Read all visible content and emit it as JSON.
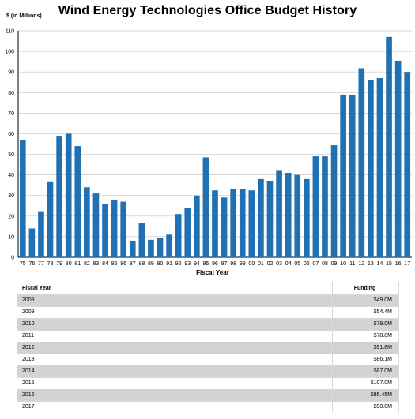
{
  "chart_data": {
    "type": "bar",
    "title": "Wind Energy Technologies Office Budget History",
    "ylabel": "$ (in Millions)",
    "xlabel": "Fiscal Year",
    "ylim": [
      0,
      110
    ],
    "yticks": [
      0,
      10,
      20,
      30,
      40,
      50,
      60,
      70,
      80,
      90,
      100,
      110
    ],
    "grid": "horizontal",
    "bar_color": "#2070b4",
    "categories": [
      "75",
      "76",
      "77",
      "78",
      "79",
      "80",
      "81",
      "82",
      "83",
      "84",
      "85",
      "86",
      "87",
      "88",
      "89",
      "90",
      "91",
      "92",
      "93",
      "94",
      "95",
      "96",
      "97",
      "98",
      "99",
      "00",
      "01",
      "02",
      "03",
      "04",
      "05",
      "06",
      "07",
      "08",
      "09",
      "10",
      "11",
      "12",
      "13",
      "14",
      "15",
      "16",
      "17"
    ],
    "values": [
      57,
      14,
      22,
      36.5,
      59,
      60,
      54,
      34,
      31,
      26,
      28,
      27,
      8,
      16.5,
      8.5,
      9.5,
      11,
      21,
      24,
      30,
      48.5,
      32.5,
      29,
      33,
      33,
      32.5,
      38,
      37,
      42,
      41,
      40,
      38,
      49,
      49,
      54.4,
      79,
      78.8,
      91.8,
      86.1,
      87,
      107,
      95.45,
      90
    ]
  },
  "table": {
    "headers": [
      "Fiscal Year",
      "Funding"
    ],
    "rows": [
      [
        "2008",
        "$49.0M"
      ],
      [
        "2009",
        "$54.4M"
      ],
      [
        "2010",
        "$79.0M"
      ],
      [
        "2011",
        "$78.8M"
      ],
      [
        "2012",
        "$91.8M"
      ],
      [
        "2013",
        "$86.1M"
      ],
      [
        "2014",
        "$87.0M"
      ],
      [
        "2015",
        "$107.0M"
      ],
      [
        "2016",
        "$95.45M"
      ],
      [
        "2017",
        "$90.0M"
      ]
    ]
  }
}
